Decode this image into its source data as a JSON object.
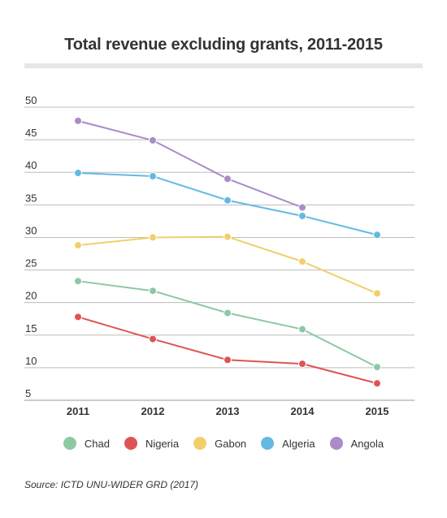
{
  "chart_data": {
    "type": "line",
    "title": "Total revenue excluding grants, 2011-2015",
    "xlabel": "",
    "ylabel": "",
    "categories": [
      "2011",
      "2012",
      "2013",
      "2014",
      "2015"
    ],
    "ylim": [
      5,
      50
    ],
    "yticks": [
      5,
      10,
      15,
      20,
      25,
      30,
      35,
      40,
      45,
      50
    ],
    "grid": "horizontal",
    "legend_position": "bottom",
    "series": [
      {
        "name": "Chad",
        "color": "#8dc8a4",
        "values": [
          23.3,
          21.8,
          18.4,
          15.9,
          10.1
        ]
      },
      {
        "name": "Nigeria",
        "color": "#de5454",
        "values": [
          17.8,
          14.4,
          11.2,
          10.6,
          7.6
        ]
      },
      {
        "name": "Gabon",
        "color": "#f2cf6b",
        "values": [
          28.8,
          30.0,
          30.1,
          26.3,
          21.4
        ]
      },
      {
        "name": "Algeria",
        "color": "#64b9e3",
        "values": [
          39.9,
          39.4,
          35.7,
          33.3,
          30.4
        ]
      },
      {
        "name": "Angola",
        "color": "#a98cc8",
        "values": [
          47.9,
          44.9,
          39.0,
          34.6,
          null
        ]
      }
    ]
  },
  "source": "Source: ICTD UNU-WIDER GRD (2017)"
}
